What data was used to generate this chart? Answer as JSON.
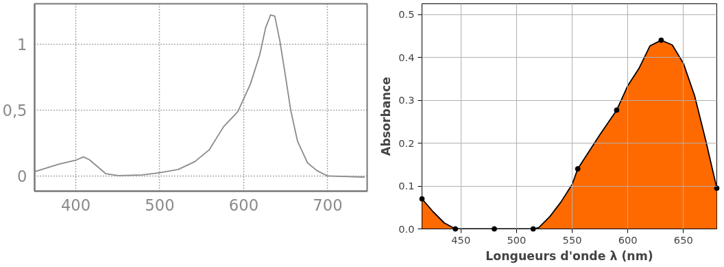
{
  "chart_data": [
    {
      "type": "line",
      "x": [
        351,
        380,
        400,
        409,
        416,
        428,
        436,
        451,
        479,
        500,
        522,
        542,
        559,
        576,
        593,
        608,
        619,
        626,
        632,
        637,
        643,
        650,
        656,
        664,
        676,
        687,
        700,
        744
      ],
      "series": [
        {
          "color": "#8a8a8a",
          "values": [
            0.033,
            0.09,
            0.12,
            0.145,
            0.125,
            0.06,
            0.017,
            0.003,
            0.008,
            0.025,
            0.05,
            0.11,
            0.2,
            0.375,
            0.49,
            0.7,
            0.92,
            1.125,
            1.225,
            1.217,
            1.03,
            0.75,
            0.5,
            0.267,
            0.1,
            0.042,
            0.0,
            -0.008
          ]
        }
      ],
      "xlim": [
        351,
        747
      ],
      "ylim": [
        -0.115,
        1.31
      ],
      "xticks": [
        400,
        500,
        600,
        700
      ],
      "yticks": [
        0,
        {
          "value": 0.5,
          "label": "0,5"
        },
        1
      ],
      "grid": true
    },
    {
      "type": "area",
      "x": [
        415,
        445,
        480,
        515,
        555,
        590,
        630,
        680
      ],
      "series": [
        {
          "color": "#ff6a00",
          "x": [
            415,
            425,
            435,
            445,
            480,
            515,
            520,
            530,
            540,
            550,
            555,
            565,
            575,
            590,
            600,
            610,
            620,
            630,
            640,
            650,
            660,
            670,
            680
          ],
          "values": [
            0.07,
            0.04,
            0.014,
            0.0,
            0.0,
            0.0,
            0.003,
            0.029,
            0.063,
            0.104,
            0.14,
            0.18,
            0.22,
            0.277,
            0.334,
            0.374,
            0.427,
            0.44,
            0.429,
            0.386,
            0.311,
            0.207,
            0.095
          ]
        },
        {
          "type": "scatter",
          "marker": "circle",
          "color": "#000000",
          "values": [
            0.07,
            0.0,
            0.0,
            0.0,
            0.14,
            0.277,
            0.44,
            0.095
          ]
        }
      ],
      "xlabel": "Longueurs d'onde λ (nm)",
      "ylabel": "Absorbance",
      "xlim": [
        415,
        680
      ],
      "ylim": [
        0,
        0.525
      ],
      "xticks": [
        450,
        500,
        550,
        600,
        650
      ],
      "yticks": [
        {
          "value": 0,
          "label": "0.0"
        },
        {
          "value": 0.1,
          "label": "0.1"
        },
        {
          "value": 0.2,
          "label": "0.2"
        },
        {
          "value": 0.3,
          "label": "0.3"
        },
        {
          "value": 0.4,
          "label": "0.4"
        },
        {
          "value": 0.5,
          "label": "0.5"
        }
      ],
      "grid": true
    }
  ]
}
